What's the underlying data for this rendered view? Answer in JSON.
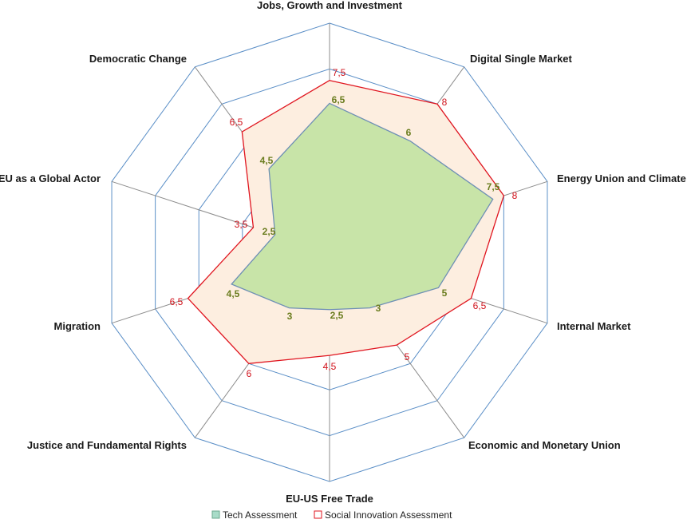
{
  "chart_data": {
    "type": "radar",
    "categories": [
      "Jobs, Growth and Investment",
      "Digital Single Market",
      "Energy Union and Climate",
      "Internal Market",
      "Economic and Monetary Union",
      "EU-US Free Trade",
      "Justice and Fundamental Rights",
      "Migration",
      "EU as a Global Actor",
      "Democratic Change"
    ],
    "series": [
      {
        "name": "Tech Assessment",
        "values": [
          6.5,
          6,
          7.5,
          5,
          3,
          2.5,
          3,
          4.5,
          2.5,
          4.5
        ],
        "value_labels": [
          "6,5",
          "6",
          "7,5",
          "5",
          "3",
          "2,5",
          "3",
          "4,5",
          "2,5",
          "4,5"
        ],
        "fill": "#c8e4a8",
        "stroke": "#6e8fb5"
      },
      {
        "name": "Social Innovation Assessment",
        "values": [
          7.5,
          8,
          8,
          6.5,
          5,
          4.5,
          6,
          6.5,
          3.5,
          6.5
        ],
        "value_labels": [
          "7,5",
          "8",
          "8",
          "6,5",
          "5",
          "4,5",
          "6",
          "6,5",
          "3,5",
          "6,5"
        ],
        "fill": "#fdeee0",
        "stroke": "#e0151f"
      }
    ],
    "rmax": 10,
    "gridlines": true,
    "legend": "bottom",
    "grid_colors": {
      "ring": "#5b8fc7",
      "spoke": "#8c8c8c"
    },
    "legend_colors": {
      "tech": "#a8dcc8",
      "social": "#ffffff",
      "social_border": "#e0151f"
    }
  }
}
